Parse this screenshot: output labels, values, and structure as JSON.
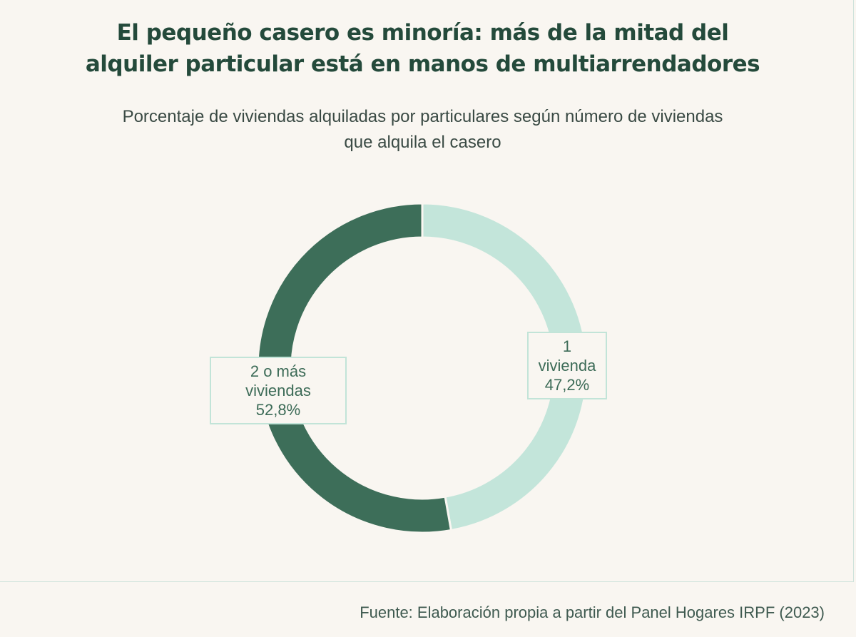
{
  "header": {
    "title_line1": "El pequeño casero es minoría: más de la mitad del",
    "title_line2": "alquiler particular está en manos de multiarrendadores",
    "subtitle_line1": "Porcentaje de viviendas alquiladas por particulares según número de viviendas",
    "subtitle_line2": "que alquila el casero"
  },
  "chart_data": {
    "type": "pie",
    "style": "donut",
    "title": "El pequeño casero es minoría: más de la mitad del alquiler particular está en manos de multiarrendadores",
    "subtitle": "Porcentaje de viviendas alquiladas por particulares según número de viviendas que alquila el casero",
    "slices": [
      {
        "label": "1 vivienda",
        "value": 47.2,
        "value_label": "47,2%",
        "color": "#c3e5da"
      },
      {
        "label": "2 o más viviendas",
        "value": 52.8,
        "value_label": "52,8%",
        "color": "#3d6e59"
      }
    ],
    "start_angle": "12 o'clock",
    "direction": "clockwise",
    "legend": "none"
  },
  "footer": {
    "source": "Fuente: Elaboración  propia  a partir del Panel Hogares IRPF (2023)"
  }
}
